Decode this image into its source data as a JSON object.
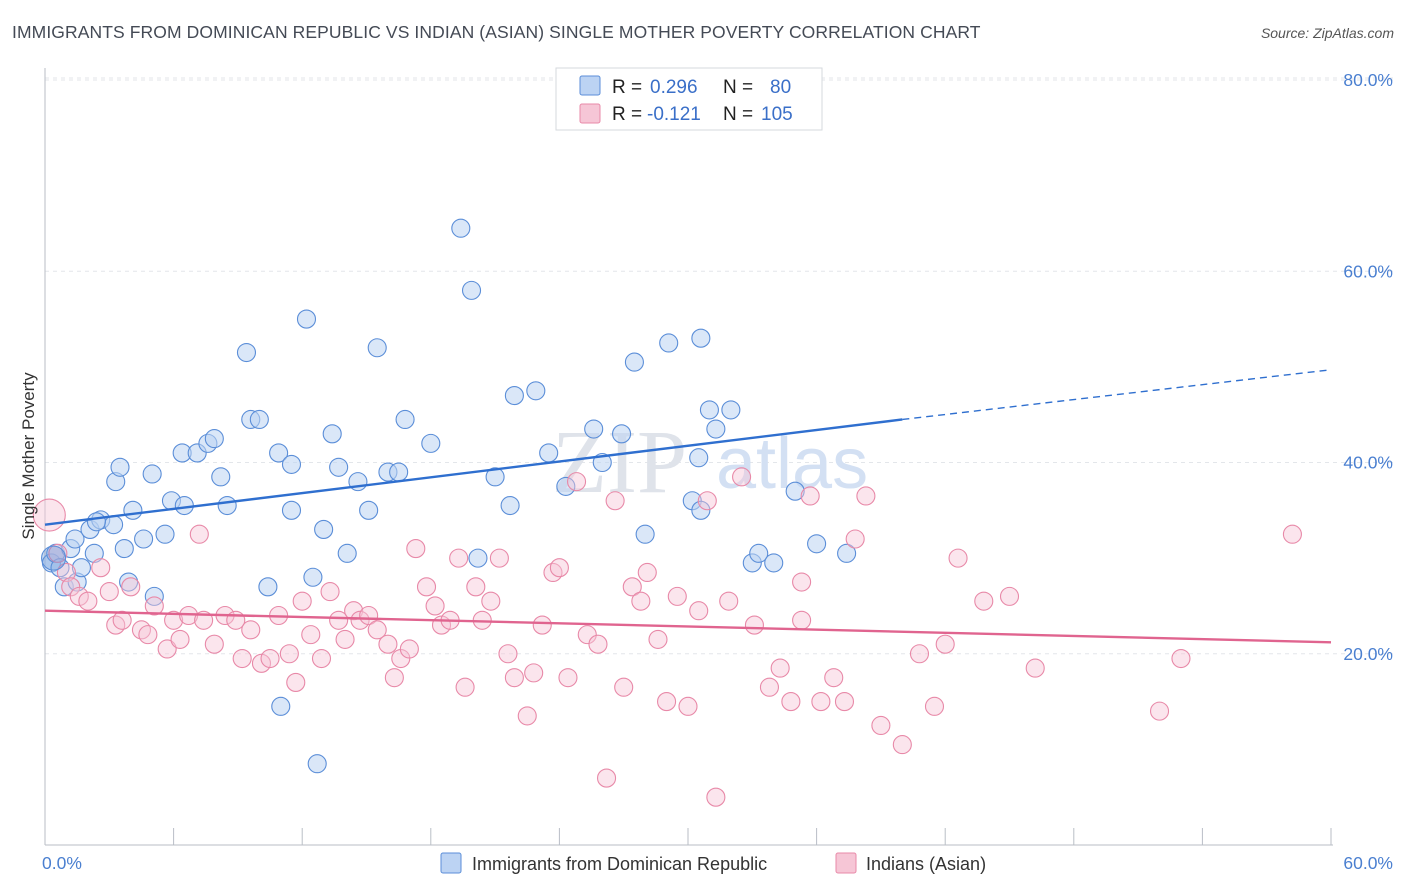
{
  "title": "IMMIGRANTS FROM DOMINICAN REPUBLIC VS INDIAN (ASIAN) SINGLE MOTHER POVERTY CORRELATION CHART",
  "source": "Source: ZipAtlas.com",
  "watermark": {
    "zip": "ZIP",
    "atlas": "atlas"
  },
  "colors": {
    "blue": "#5b8ed8",
    "blue_fill": "#bcd3f3",
    "blue_line": "#2f6fcf",
    "pink": "#e889a8",
    "pink_fill": "#f6c6d6",
    "pink_line": "#e0648f",
    "tick": "#4a7fd0",
    "grid": "#e3e6ea"
  },
  "legend_top": [
    {
      "r_label": "R =",
      "r_value": "0.296",
      "n_label": "N =",
      "n_value": "80"
    },
    {
      "r_label": "R =",
      "r_value": "-0.121",
      "n_label": "N =",
      "n_value": "105"
    }
  ],
  "legend_bottom": [
    "Immigrants from Dominican Republic",
    "Indians (Asian)"
  ],
  "chart_data": {
    "type": "scatter",
    "ylabel": "Single Mother Poverty",
    "xlabel": "",
    "xlim": [
      0,
      60
    ],
    "ylim": [
      0,
      80
    ],
    "x_ticks": [
      "0.0%",
      "60.0%"
    ],
    "y_ticks": [
      "20.0%",
      "40.0%",
      "60.0%",
      "80.0%"
    ],
    "y_tick_values": [
      20,
      40,
      60,
      80
    ],
    "series": [
      {
        "name": "Immigrants from Dominican Republic",
        "color": "#5b8ed8",
        "trend": {
          "x0": 0,
          "y0": 33.5,
          "x1": 40,
          "y1": 44.5,
          "dashed_to_x": 60,
          "dashed_to_y": 49.7
        },
        "points": [
          [
            0.3,
            29.5
          ],
          [
            0.5,
            30.5
          ],
          [
            0.7,
            29
          ],
          [
            0.9,
            27
          ],
          [
            1.2,
            31
          ],
          [
            1.4,
            32
          ],
          [
            1.5,
            27.5
          ],
          [
            1.7,
            29
          ],
          [
            2.1,
            33
          ],
          [
            2.3,
            30.5
          ],
          [
            2.6,
            34
          ],
          [
            3.3,
            38
          ],
          [
            3.5,
            39.5
          ],
          [
            3.7,
            31
          ],
          [
            3.9,
            27.5
          ],
          [
            4.1,
            35
          ],
          [
            4.6,
            32
          ],
          [
            5.0,
            38.8
          ],
          [
            5.1,
            26
          ],
          [
            5.9,
            36
          ],
          [
            5.6,
            32.5
          ],
          [
            6.5,
            35.5
          ],
          [
            6.4,
            41
          ],
          [
            7.1,
            41
          ],
          [
            7.6,
            42
          ],
          [
            7.9,
            42.5
          ],
          [
            8.2,
            38.5
          ],
          [
            8.5,
            35.5
          ],
          [
            9.4,
            51.5
          ],
          [
            9.6,
            44.5
          ],
          [
            10.0,
            44.5
          ],
          [
            10.4,
            27
          ],
          [
            10.9,
            41
          ],
          [
            11.0,
            14.5
          ],
          [
            11.5,
            39.8
          ],
          [
            11.5,
            35
          ],
          [
            12.2,
            55
          ],
          [
            12.5,
            28
          ],
          [
            12.7,
            8.5
          ],
          [
            13.0,
            33
          ],
          [
            13.4,
            43
          ],
          [
            13.7,
            39.5
          ],
          [
            14.1,
            30.5
          ],
          [
            14.6,
            38
          ],
          [
            15.1,
            35
          ],
          [
            15.5,
            52
          ],
          [
            16.0,
            39
          ],
          [
            16.5,
            39
          ],
          [
            16.8,
            44.5
          ],
          [
            18.0,
            42
          ],
          [
            19.4,
            64.5
          ],
          [
            19.9,
            58
          ],
          [
            20.2,
            30
          ],
          [
            21.0,
            38.5
          ],
          [
            21.7,
            35.5
          ],
          [
            21.9,
            47
          ],
          [
            22.9,
            47.5
          ],
          [
            23.5,
            41
          ],
          [
            24.3,
            37.5
          ],
          [
            25.6,
            43.5
          ],
          [
            26.0,
            40
          ],
          [
            27.5,
            50.5
          ],
          [
            28.0,
            32.5
          ],
          [
            29.1,
            52.5
          ],
          [
            30.2,
            36
          ],
          [
            30.6,
            35
          ],
          [
            30.6,
            53
          ],
          [
            31.0,
            45.5
          ],
          [
            32.0,
            45.5
          ],
          [
            33.0,
            29.5
          ],
          [
            33.3,
            30.5
          ],
          [
            34.0,
            29.5
          ],
          [
            35.0,
            37
          ],
          [
            36.0,
            31.5
          ],
          [
            37.4,
            30.5
          ],
          [
            30.5,
            40.5
          ],
          [
            31.3,
            43.5
          ],
          [
            26.9,
            43
          ],
          [
            3.2,
            33.5
          ],
          [
            2.4,
            33.8
          ]
        ]
      },
      {
        "name": "Indians (Asian)",
        "color": "#e889a8",
        "trend": {
          "x0": 0,
          "y0": 24.5,
          "x1": 60,
          "y1": 21.2
        },
        "points": [
          [
            0.2,
            34.5
          ],
          [
            0.6,
            30.5
          ],
          [
            1.0,
            28.5
          ],
          [
            1.2,
            27
          ],
          [
            1.6,
            26
          ],
          [
            2.0,
            25.5
          ],
          [
            2.6,
            29
          ],
          [
            3.0,
            26.5
          ],
          [
            3.3,
            23
          ],
          [
            3.6,
            23.5
          ],
          [
            4.0,
            27
          ],
          [
            4.5,
            22.5
          ],
          [
            4.8,
            22
          ],
          [
            5.1,
            25
          ],
          [
            5.7,
            20.5
          ],
          [
            6.0,
            23.5
          ],
          [
            6.3,
            21.5
          ],
          [
            6.7,
            24
          ],
          [
            7.2,
            32.5
          ],
          [
            7.4,
            23.5
          ],
          [
            7.9,
            21
          ],
          [
            8.4,
            24
          ],
          [
            8.9,
            23.5
          ],
          [
            9.2,
            19.5
          ],
          [
            9.6,
            22.5
          ],
          [
            10.1,
            19
          ],
          [
            10.5,
            19.5
          ],
          [
            10.9,
            24
          ],
          [
            11.4,
            20
          ],
          [
            11.7,
            17
          ],
          [
            12.0,
            25.5
          ],
          [
            12.4,
            22
          ],
          [
            12.9,
            19.5
          ],
          [
            13.3,
            26.5
          ],
          [
            13.7,
            23.5
          ],
          [
            14.0,
            21.5
          ],
          [
            14.4,
            24.5
          ],
          [
            14.7,
            23.5
          ],
          [
            15.1,
            24
          ],
          [
            15.5,
            22.5
          ],
          [
            16.0,
            21
          ],
          [
            16.3,
            17.5
          ],
          [
            16.6,
            19.5
          ],
          [
            17.0,
            20.5
          ],
          [
            17.3,
            31
          ],
          [
            17.8,
            27
          ],
          [
            18.2,
            25
          ],
          [
            18.5,
            23
          ],
          [
            18.9,
            23.5
          ],
          [
            19.3,
            30
          ],
          [
            19.6,
            16.5
          ],
          [
            20.1,
            27
          ],
          [
            20.4,
            23.5
          ],
          [
            20.8,
            25.5
          ],
          [
            21.2,
            30
          ],
          [
            21.6,
            20
          ],
          [
            21.9,
            17.5
          ],
          [
            22.5,
            13.5
          ],
          [
            22.8,
            18
          ],
          [
            23.2,
            23
          ],
          [
            23.7,
            28.5
          ],
          [
            24.0,
            29
          ],
          [
            24.4,
            17.5
          ],
          [
            24.8,
            38
          ],
          [
            25.3,
            22
          ],
          [
            25.8,
            21
          ],
          [
            26.2,
            7
          ],
          [
            26.6,
            36
          ],
          [
            27.0,
            16.5
          ],
          [
            27.4,
            27
          ],
          [
            27.8,
            25.5
          ],
          [
            28.1,
            28.5
          ],
          [
            28.6,
            21.5
          ],
          [
            29.0,
            15
          ],
          [
            29.5,
            26
          ],
          [
            30.0,
            14.5
          ],
          [
            30.5,
            24.5
          ],
          [
            30.9,
            36
          ],
          [
            31.3,
            5
          ],
          [
            31.9,
            25.5
          ],
          [
            32.5,
            38.5
          ],
          [
            33.1,
            23
          ],
          [
            33.8,
            16.5
          ],
          [
            34.3,
            18.5
          ],
          [
            34.8,
            15
          ],
          [
            35.3,
            27.5
          ],
          [
            35.7,
            36.5
          ],
          [
            36.2,
            15
          ],
          [
            36.8,
            17.5
          ],
          [
            37.3,
            15
          ],
          [
            37.8,
            32
          ],
          [
            38.3,
            36.5
          ],
          [
            39.0,
            12.5
          ],
          [
            40.0,
            10.5
          ],
          [
            40.8,
            20
          ],
          [
            41.5,
            14.5
          ],
          [
            42.0,
            21
          ],
          [
            42.6,
            30
          ],
          [
            43.8,
            25.5
          ],
          [
            45.0,
            26
          ],
          [
            46.2,
            18.5
          ],
          [
            52.0,
            14
          ],
          [
            53.0,
            19.5
          ],
          [
            58.2,
            32.5
          ],
          [
            35.3,
            23.5
          ]
        ]
      }
    ]
  }
}
